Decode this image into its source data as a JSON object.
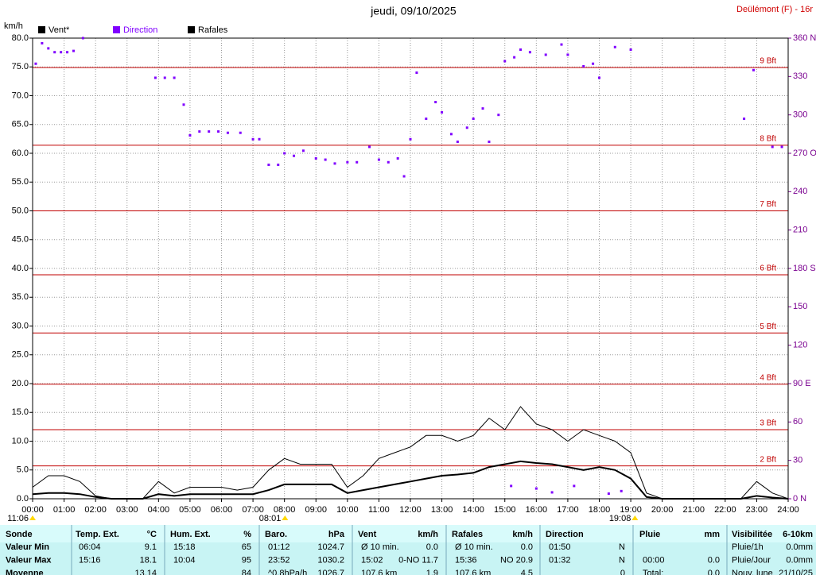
{
  "chart_data": {
    "type": "line",
    "title": "jeudi, 09/10/2025",
    "station": "Deülémont (F) - 16r",
    "ylabel": "km/h",
    "xlim": [
      0,
      24
    ],
    "xticks": [
      {
        "value": 0,
        "label": "00:00"
      },
      {
        "value": 1,
        "label": "01:00"
      },
      {
        "value": 2,
        "label": "02:00"
      },
      {
        "value": 3,
        "label": "03:00"
      },
      {
        "value": 4,
        "label": "04:00"
      },
      {
        "value": 5,
        "label": "05:00"
      },
      {
        "value": 6,
        "label": "06:00"
      },
      {
        "value": 7,
        "label": "07:00"
      },
      {
        "value": 8,
        "label": "08:00"
      },
      {
        "value": 9,
        "label": "09:00"
      },
      {
        "value": 10,
        "label": "10:00"
      },
      {
        "value": 11,
        "label": "11:00"
      },
      {
        "value": 12,
        "label": "12:00"
      },
      {
        "value": 13,
        "label": "13:00"
      },
      {
        "value": 14,
        "label": "14:00"
      },
      {
        "value": 15,
        "label": "15:00"
      },
      {
        "value": 16,
        "label": "16:00"
      },
      {
        "value": 17,
        "label": "17:00"
      },
      {
        "value": 18,
        "label": "18:00"
      },
      {
        "value": 19,
        "label": "19:00"
      },
      {
        "value": 20,
        "label": "20:00"
      },
      {
        "value": 21,
        "label": "21:00"
      },
      {
        "value": 22,
        "label": "22:00"
      },
      {
        "value": 23,
        "label": "23:00"
      },
      {
        "value": 24,
        "label": "24:00"
      }
    ],
    "ylim": [
      0,
      80
    ],
    "yticks": [
      {
        "value": 0,
        "label": "0.0"
      },
      {
        "value": 5,
        "label": "5.0"
      },
      {
        "value": 10,
        "label": "10.0"
      },
      {
        "value": 15,
        "label": "15.0"
      },
      {
        "value": 20,
        "label": "20.0"
      },
      {
        "value": 25,
        "label": "25.0"
      },
      {
        "value": 30,
        "label": "30.0"
      },
      {
        "value": 35,
        "label": "35.0"
      },
      {
        "value": 40,
        "label": "40.0"
      },
      {
        "value": 45,
        "label": "45.0"
      },
      {
        "value": 50,
        "label": "50.0"
      },
      {
        "value": 55,
        "label": "55.0"
      },
      {
        "value": 60,
        "label": "60.0"
      },
      {
        "value": 65,
        "label": "65.0"
      },
      {
        "value": 70,
        "label": "70.0"
      },
      {
        "value": 75,
        "label": "75.0"
      },
      {
        "value": 80,
        "label": "80.0"
      }
    ],
    "y2lim": [
      0,
      360
    ],
    "y2ticks": [
      {
        "value": 0,
        "label": "0 N"
      },
      30,
      60,
      {
        "value": 90,
        "label": "90 E"
      },
      120,
      150,
      {
        "value": 180,
        "label": "180 S"
      },
      210,
      240,
      {
        "value": 270,
        "label": "270 O"
      },
      300,
      330,
      {
        "value": 360,
        "label": "360 N"
      }
    ],
    "grid": true,
    "beaufort": [
      {
        "label": "2 Bft",
        "value": 5.7
      },
      {
        "label": "3 Bft",
        "value": 12
      },
      {
        "label": "4 Bft",
        "value": 19.9
      },
      {
        "label": "5 Bft",
        "value": 28.8
      },
      {
        "label": "6 Bft",
        "value": 38.9
      },
      {
        "label": "7 Bft",
        "value": 50
      },
      {
        "label": "8 Bft",
        "value": 61.4
      },
      {
        "label": "9 Bft",
        "value": 74.9
      }
    ],
    "markers": [
      {
        "label": "11:06",
        "x": 0
      },
      {
        "label": "08:01",
        "x": 8.017
      },
      {
        "label": "19:08",
        "x": 19.133
      }
    ],
    "x": [
      0,
      0.5,
      1,
      1.5,
      2,
      2.5,
      3,
      3.5,
      4,
      4.5,
      5,
      5.5,
      6,
      6.5,
      7,
      7.5,
      8,
      8.5,
      9,
      9.5,
      10,
      10.5,
      11,
      11.5,
      12,
      12.5,
      13,
      13.5,
      14,
      14.5,
      15,
      15.5,
      16,
      16.5,
      17,
      17.5,
      18,
      18.5,
      19,
      19.5,
      20,
      20.5,
      21,
      21.5,
      22,
      22.5,
      23,
      23.5,
      24
    ],
    "series": [
      {
        "name": "Vent*",
        "color": "#000000",
        "values": [
          0.8,
          1,
          1,
          0.8,
          0.3,
          0,
          0,
          0,
          0.8,
          0.5,
          0.8,
          0.8,
          0.8,
          0.8,
          0.8,
          1.5,
          2.5,
          2.5,
          2.5,
          2.5,
          1,
          1.5,
          2,
          2.5,
          3,
          3.5,
          4,
          4.2,
          4.5,
          5.5,
          6,
          6.5,
          6.2,
          6,
          5.5,
          5,
          5.5,
          5,
          3.5,
          0.3,
          0,
          0,
          0,
          0,
          0,
          0,
          0.5,
          0.2,
          0
        ]
      },
      {
        "name": "Direction",
        "color": "#8000ff",
        "axis": "y2",
        "type": "scatter",
        "x": [
          0.1,
          0.3,
          0.5,
          0.7,
          0.9,
          1.1,
          1.3,
          1.6,
          3.9,
          4.2,
          4.5,
          4.8,
          5,
          5.3,
          5.6,
          5.9,
          6.2,
          6.6,
          7,
          7.2,
          7.5,
          7.8,
          8,
          8.3,
          8.6,
          9,
          9.3,
          9.6,
          10,
          10.3,
          10.7,
          11,
          11.3,
          11.6,
          11.8,
          12,
          12.2,
          12.5,
          12.8,
          13,
          13.3,
          13.5,
          13.8,
          14,
          14.3,
          14.5,
          14.8,
          15,
          15.2,
          15.3,
          15.5,
          15.8,
          16,
          16.3,
          16.5,
          16.8,
          17,
          17.2,
          17.5,
          17.8,
          18,
          18.3,
          18.5,
          18.7,
          19,
          22.6,
          22.9,
          23.5,
          23.8
        ],
        "values": [
          340,
          356,
          352,
          349,
          349,
          349,
          350,
          360,
          329,
          329,
          329,
          308,
          284,
          287,
          287,
          287,
          286,
          286,
          281,
          281,
          261,
          261,
          270,
          268,
          272,
          266,
          265,
          262,
          263,
          263,
          275,
          265,
          263,
          266,
          252,
          281,
          333,
          297,
          310,
          302,
          285,
          279,
          290,
          297,
          305,
          279,
          300,
          342,
          10,
          345,
          351,
          349,
          8,
          347,
          5,
          355,
          347,
          10,
          338,
          340,
          329,
          4,
          353,
          6,
          351,
          297,
          335,
          275,
          275
        ]
      },
      {
        "name": "Rafales",
        "color": "#000000",
        "values": [
          2,
          4,
          4,
          3,
          0.5,
          0,
          0,
          0,
          3,
          1,
          2,
          2,
          2,
          1.5,
          2,
          5,
          7,
          6,
          6,
          6,
          2,
          4,
          7,
          8,
          9,
          11,
          11,
          10,
          11,
          14,
          12,
          16,
          13,
          12,
          10,
          12,
          11,
          10,
          8,
          1,
          0,
          0,
          0,
          0,
          0,
          0,
          3,
          1,
          0
        ]
      }
    ]
  },
  "table": {
    "header": [
      "Sonde",
      "Temp. Ext.",
      "°C",
      "Hum. Ext.",
      "%",
      "Baro.",
      "hPa",
      "Vent",
      "km/h",
      "Rafales",
      "km/h",
      "Direction",
      null,
      "Pluie",
      "mm",
      "Visibilitée",
      "6-10km"
    ],
    "rows": [
      [
        "Valeur Min",
        "06:04",
        "9.1",
        "15:18",
        "65",
        "01:12",
        "1024.7",
        "Ø 10 min.",
        "0.0",
        "Ø 10 min.",
        "0.0",
        "01:50",
        "N",
        null,
        null,
        "Pluie/1h",
        "0.0mm"
      ],
      [
        "Valeur Max",
        "15:16",
        "18.1",
        "10:04",
        "95",
        "23:52",
        "1030.2",
        "15:02",
        "0-NO 11.7",
        "15:36",
        "NO 20.9",
        "01:32",
        "N",
        "00:00",
        "0.0",
        "Pluie/Jour",
        "0.0mm"
      ],
      [
        "Moyenne",
        null,
        "13.14",
        null,
        "84",
        "^0.8hPa/h",
        "1026.7",
        "107.6 km",
        "1.9",
        "107.6 km",
        "4.5",
        null,
        "0",
        "Total:",
        "0.0",
        "Nouv. lune",
        "21/10/25"
      ]
    ]
  }
}
